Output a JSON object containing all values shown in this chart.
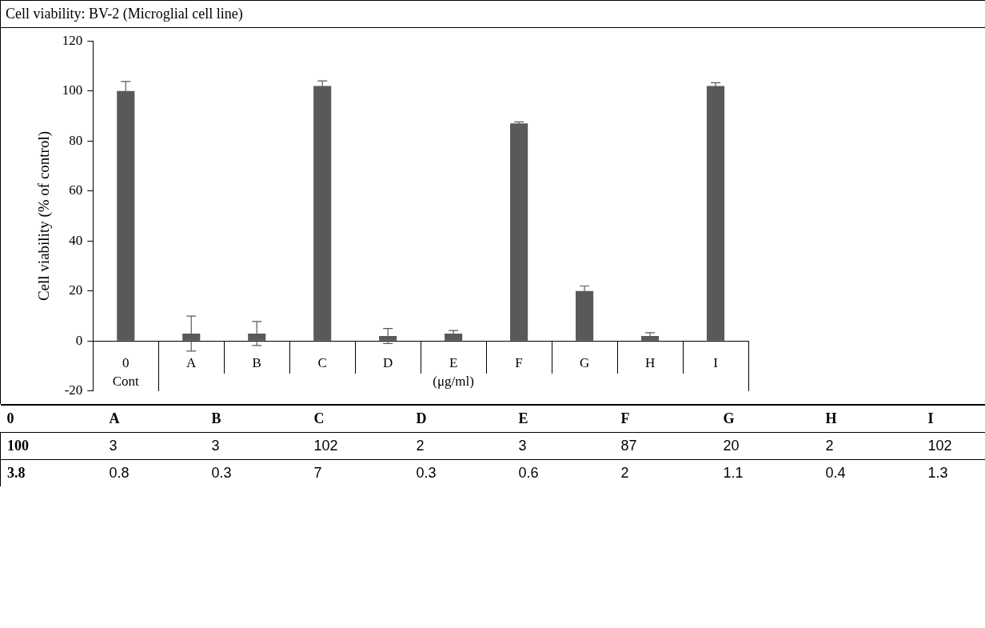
{
  "chart_data": {
    "type": "bar",
    "title": "Cell viability: BV-2 (Microglial cell line)",
    "ylabel": "Cell viability (% of control)",
    "categories": [
      "0",
      "A",
      "B",
      "C",
      "D",
      "E",
      "F",
      "G",
      "H",
      "I"
    ],
    "values": [
      100,
      3,
      3,
      102,
      2,
      3,
      87,
      20,
      2,
      102
    ],
    "errors": [
      3.8,
      7,
      4.8,
      2,
      3,
      1.2,
      0.6,
      2,
      1.3,
      1.3
    ],
    "color": "#595959",
    "ylim": [
      -20,
      120
    ],
    "yticks": [
      -20,
      0,
      20,
      40,
      60,
      80,
      100,
      120
    ],
    "grid": false,
    "legend": false,
    "annotations": [
      "Cont",
      "(μg/ml)",
      "100",
      "3",
      "3",
      "102",
      "2",
      "3",
      "87",
      "20",
      "2",
      "102",
      "3.8",
      "0.8",
      "0.3",
      "7",
      "0.3",
      "0.6",
      "2",
      "1.1",
      "0.4",
      "1.3"
    ]
  }
}
